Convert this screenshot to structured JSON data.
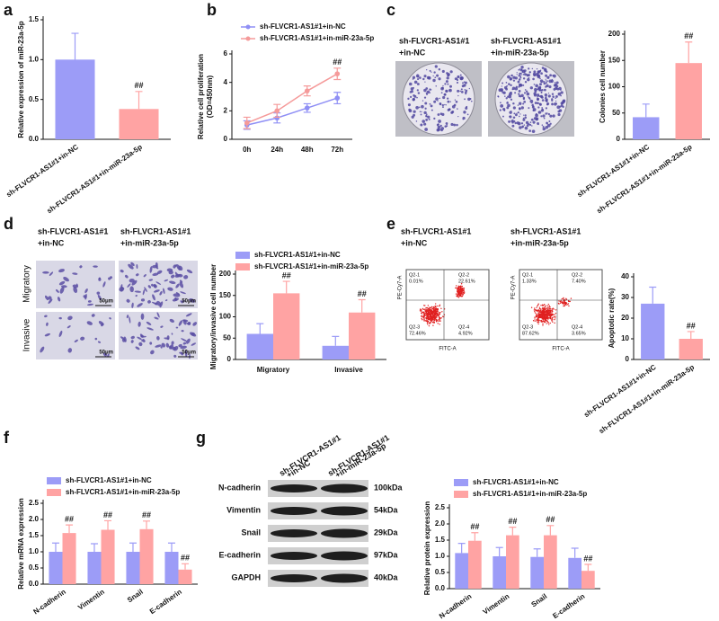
{
  "chart_data": [
    {
      "panel": "a",
      "type": "bar",
      "y_label": "Relative expression of miR-23a-5p",
      "categories": [
        "sh-FLVCR1-AS1#1+in-NC",
        "sh-FLVCR1-AS1#1+in-miR-23a-5p"
      ],
      "values": [
        1.0,
        0.38
      ],
      "errors": [
        0.33,
        0.22
      ],
      "colors": [
        "#9c9cf7",
        "#ffa3a3"
      ],
      "sig": [
        null,
        "##"
      ],
      "ylim": [
        0,
        1.5
      ],
      "yticks": [
        {
          "value": 0,
          "label": "0.0"
        },
        0.5,
        {
          "value": 1,
          "label": "1.0"
        },
        1.5
      ]
    },
    {
      "panel": "b",
      "type": "line",
      "y_label": [
        "Relative cell proliferation",
        "(OD=450nm)"
      ],
      "categories": [
        "0h",
        "24h",
        "48h",
        "72h"
      ],
      "series": [
        {
          "name": "sh-FLVCR1-AS1#1+in-NC",
          "color": "#8f8ff5",
          "values": [
            1.0,
            1.5,
            2.2,
            2.9
          ],
          "errors": [
            0.3,
            0.35,
            0.3,
            0.4
          ]
        },
        {
          "name": "sh-FLVCR1-AS1#1+in-miR-23a-5p",
          "color": "#f59a9a",
          "values": [
            1.15,
            2.0,
            3.4,
            4.6
          ],
          "errors": [
            0.4,
            0.45,
            0.35,
            0.4
          ],
          "sig": [
            null,
            null,
            null,
            "##"
          ]
        }
      ],
      "ylim": [
        0,
        6
      ],
      "yticks": [
        0,
        2,
        4,
        6
      ]
    },
    {
      "panel": "c",
      "type": "bar",
      "y_label": "Colonies cell number",
      "categories": [
        "sh-FLVCR1-AS1#1+in-NC",
        "sh-FLVCR1-AS1#1+in-miR-23a-5p"
      ],
      "values": [
        42,
        145
      ],
      "errors": [
        25,
        40
      ],
      "colors": [
        "#9c9cf7",
        "#ffa3a3"
      ],
      "sig": [
        null,
        "##"
      ],
      "ylim": [
        0,
        200
      ],
      "yticks": [
        0,
        50,
        100,
        150,
        200
      ]
    },
    {
      "panel": "d",
      "type": "bar",
      "y_label": "Migratory/invasive cell number",
      "categories": [
        "Migratory",
        "Invasive"
      ],
      "series": [
        {
          "name": "sh-FLVCR1-AS1#1+in-NC",
          "color": "#9c9cf7",
          "values": [
            60,
            32
          ],
          "errors": [
            24,
            22
          ]
        },
        {
          "name": "sh-FLVCR1-AS1#1+in-miR-23a-5p",
          "color": "#ffa3a3",
          "values": [
            155,
            110
          ],
          "errors": [
            28,
            30
          ],
          "sig": [
            "##",
            "##"
          ]
        }
      ],
      "ylim": [
        0,
        200
      ],
      "yticks": [
        0,
        50,
        100,
        150,
        200
      ]
    },
    {
      "panel": "e",
      "type": "bar",
      "y_label": "Apoptotic rate(%)",
      "categories": [
        "sh-FLVCR1-AS1#1+in-NC",
        "sh-FLVCR1-AS1#1+in-miR-23a-5p"
      ],
      "values": [
        27,
        10
      ],
      "errors": [
        8,
        3.5
      ],
      "colors": [
        "#9c9cf7",
        "#ffa3a3"
      ],
      "sig": [
        null,
        "##"
      ],
      "ylim": [
        0,
        40
      ],
      "yticks": [
        0,
        10,
        20,
        30,
        40
      ]
    },
    {
      "panel": "f",
      "type": "bar",
      "y_label": "Relative mRNA expression",
      "categories": [
        "N-cadherin",
        "Vimentin",
        "Snail",
        "E-cadherin"
      ],
      "series": [
        {
          "name": "sh-FLVCR1-AS1#1+in-NC",
          "color": "#9c9cf7",
          "values": [
            1.0,
            1.0,
            1.0,
            1.0
          ],
          "errors": [
            0.27,
            0.25,
            0.27,
            0.27
          ]
        },
        {
          "name": "sh-FLVCR1-AS1#1+in-miR-23a-5p",
          "color": "#ffa3a3",
          "values": [
            1.58,
            1.68,
            1.7,
            0.45
          ],
          "errors": [
            0.25,
            0.28,
            0.25,
            0.18
          ],
          "sig": [
            "##",
            "##",
            "##",
            "##"
          ]
        }
      ],
      "ylim": [
        0,
        2.5
      ],
      "yticks": [
        {
          "value": 0,
          "label": "0.0"
        },
        0.5,
        {
          "value": 1,
          "label": "1.0"
        },
        1.5,
        {
          "value": 2,
          "label": "2.0"
        },
        2.5
      ]
    },
    {
      "panel": "g",
      "type": "bar",
      "y_label": "Relative protein expression",
      "categories": [
        "N-cadherin",
        "Vimentin",
        "Snail",
        "E-cadherin"
      ],
      "series": [
        {
          "name": "sh-FLVCR1-AS1#1+in-NC",
          "color": "#9c9cf7",
          "values": [
            1.1,
            1.0,
            0.98,
            0.95
          ],
          "errors": [
            0.3,
            0.27,
            0.25,
            0.3
          ]
        },
        {
          "name": "sh-FLVCR1-AS1#1+in-miR-23a-5p",
          "color": "#ffa3a3",
          "values": [
            1.48,
            1.65,
            1.65,
            0.55
          ],
          "errors": [
            0.25,
            0.25,
            0.3,
            0.2
          ],
          "sig": [
            "##",
            "##",
            "##",
            "##"
          ]
        }
      ],
      "ylim": [
        0,
        2.5
      ],
      "yticks": [
        {
          "value": 0,
          "label": "0.0"
        },
        0.5,
        {
          "value": 1,
          "label": "1.0"
        },
        1.5,
        {
          "value": 2,
          "label": "2.0"
        },
        2.5
      ]
    }
  ],
  "images": {
    "c": {
      "titles": [
        [
          "sh-FLVCR1-AS1#1",
          "+in-NC"
        ],
        [
          "sh-FLVCR1-AS1#1",
          "+in-miR-23a-5p"
        ]
      ]
    },
    "d": {
      "titles": [
        [
          "sh-FLVCR1-AS1#1",
          "+in-NC"
        ],
        [
          "sh-FLVCR1-AS1#1",
          "+in-miR-23a-5p"
        ]
      ],
      "rows": [
        "Migratory",
        "Invasive"
      ],
      "scale": "50μm"
    },
    "e": {
      "titles": [
        [
          "sh-FLVCR1-AS1#1",
          "+in-NC"
        ],
        [
          "sh-FLVCR1-AS1#1",
          "+in-miR-23a-5p"
        ]
      ],
      "plots": [
        {
          "quadrants": [
            [
              "Q2-1",
              "0.01%"
            ],
            [
              "Q2-2",
              "22.61%"
            ],
            [
              "Q2-3",
              "72.46%"
            ],
            [
              "Q2-4",
              "4.92%"
            ]
          ]
        },
        {
          "quadrants": [
            [
              "Q2-1",
              "1.33%"
            ],
            [
              "Q2-2",
              "7.40%"
            ],
            [
              "Q2-3",
              "87.62%"
            ],
            [
              "Q2-4",
              "3.65%"
            ]
          ]
        }
      ],
      "y_axis": "PE-Cy7-A",
      "x_axis": "FITC-A"
    },
    "g": {
      "lanes": [
        [
          "sh-FLVCR1-AS1#1",
          "+in-NC"
        ],
        [
          "sh-FLVCR1-AS1#1",
          "+in-miR-23a-5p"
        ]
      ],
      "blots": [
        [
          "N-cadherin",
          "100kDa"
        ],
        [
          "Vimentin",
          "54kDa"
        ],
        [
          "Snail",
          "29kDa"
        ],
        [
          "E-cadherin",
          "97kDa"
        ],
        [
          "GAPDH",
          "40kDa"
        ]
      ]
    }
  }
}
